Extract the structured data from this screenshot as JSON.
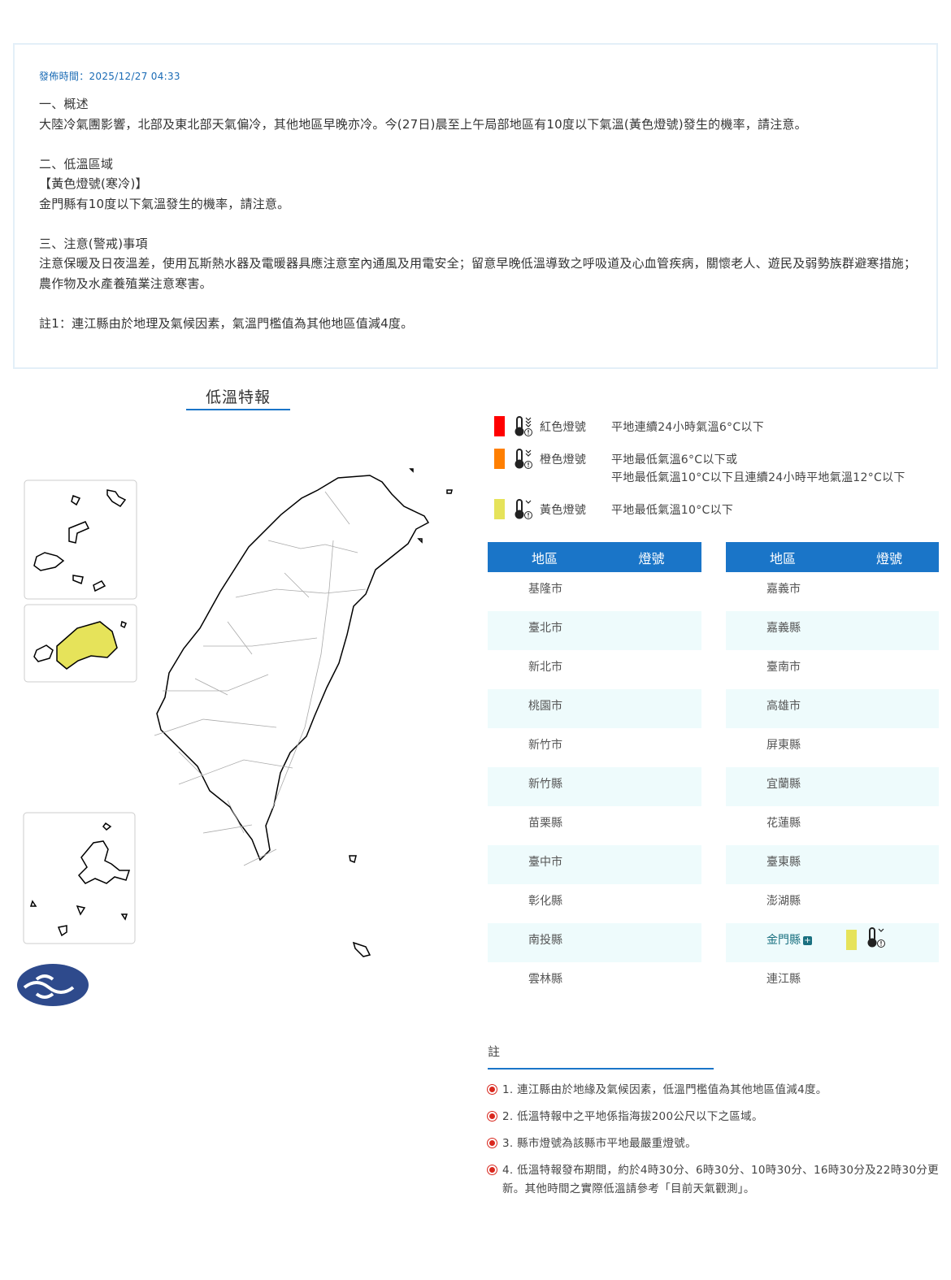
{
  "summary": {
    "issued": "發佈時間：2025/12/27 04:33",
    "s1_title": "一、概述",
    "s1_body": "大陸冷氣團影響，北部及東北部天氣偏冷，其他地區早晚亦冷。今(27日)晨至上午局部地區有10度以下氣溫(黃色燈號)發生的機率，請注意。",
    "s2_title": "二、低溫區域",
    "s2_sub": "【黃色燈號(寒冷)】",
    "s2_body": "金門縣有10度以下氣溫發生的機率，請注意。",
    "s3_title": "三、注意(警戒)事項",
    "s3_body": "注意保暖及日夜溫差，使用瓦斯熱水器及電暖器具應注意室內通風及用電安全；留意早晚低溫導致之呼吸道及心血管疾病，關懷老人、遊民及弱勢族群避寒措施；農作物及水產養殖業注意寒害。",
    "footnote": "註1：連江縣由於地理及氣候因素，氣溫門檻值為其他地區值減4度。"
  },
  "map": {
    "title": "低溫特報",
    "highlight_color": "#e6e35a",
    "highlighted": "金門縣"
  },
  "legend": [
    {
      "color": "#ff0000",
      "name": "紅色燈號",
      "desc": [
        "平地連續24小時氣溫6°C以下"
      ],
      "icon": "thermometer-red-icon"
    },
    {
      "color": "#ff7f00",
      "name": "橙色燈號",
      "desc": [
        "平地最低氣溫6°C以下或",
        "平地最低氣溫10°C以下且連續24小時平地氣溫12°C以下"
      ],
      "icon": "thermometer-orange-icon"
    },
    {
      "color": "#e6e35a",
      "name": "黃色燈號",
      "desc": [
        "平地最低氣溫10°C以下"
      ],
      "icon": "thermometer-yellow-icon"
    }
  ],
  "table": {
    "col_area": "地區",
    "col_signal": "燈號",
    "left": [
      "基隆市",
      "臺北市",
      "新北市",
      "桃園市",
      "新竹市",
      "新竹縣",
      "苗栗縣",
      "臺中市",
      "彰化縣",
      "南投縣",
      "雲林縣"
    ],
    "right": [
      "嘉義市",
      "嘉義縣",
      "臺南市",
      "高雄市",
      "屏東縣",
      "宜蘭縣",
      "花蓮縣",
      "臺東縣",
      "澎湖縣",
      "金門縣",
      "連江縣"
    ],
    "signals": {
      "金門縣": "#e6e35a"
    }
  },
  "notes": {
    "title": "註",
    "items": [
      "1. 連江縣由於地緣及氣候因素，低溫門檻值為其他地區值減4度。",
      "2. 低溫特報中之平地係指海拔200公尺以下之區域。",
      "3. 縣市燈號為該縣市平地最嚴重燈號。",
      "4. 低溫特報發布期間，約於4時30分、6時30分、10時30分、16時30分及22時30分更新。其他時間之實際低溫請參考「目前天氣觀測」。"
    ]
  }
}
